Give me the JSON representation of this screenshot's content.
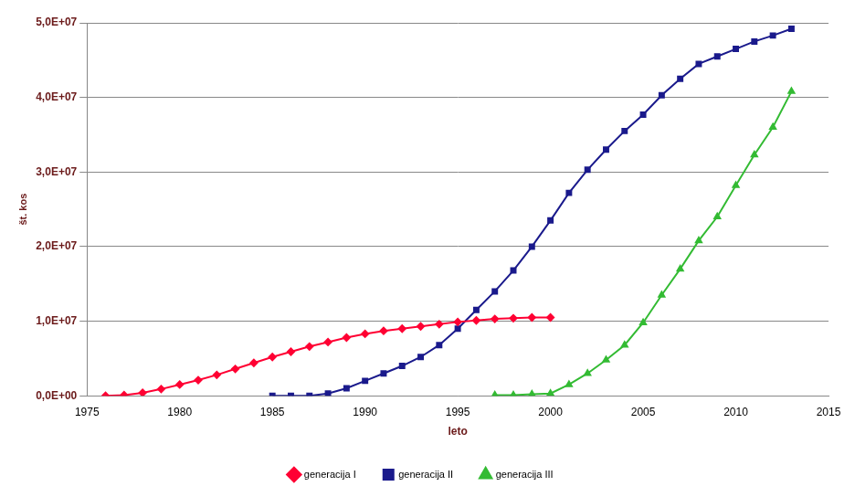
{
  "chart_data": {
    "type": "line",
    "x_label": "leto",
    "y_label": "št. kos",
    "x": [
      1976,
      1977,
      1978,
      1979,
      1980,
      1981,
      1982,
      1983,
      1984,
      1985,
      1986,
      1987,
      1988,
      1989,
      1990,
      1991,
      1992,
      1993,
      1994,
      1995,
      1996,
      1997,
      1998,
      1999,
      2000,
      2001,
      2002,
      2003,
      2004,
      2005,
      2006,
      2007,
      2008,
      2009,
      2010,
      2011,
      2012,
      2013
    ],
    "series": [
      {
        "name": "generacija I",
        "color": "#ff0033",
        "marker": "diamond",
        "values": [
          0,
          100000,
          400000,
          900000,
          1500000,
          2100000,
          2800000,
          3600000,
          4400000,
          5200000,
          5900000,
          6600000,
          7200000,
          7800000,
          8300000,
          8700000,
          9000000,
          9300000,
          9600000,
          9900000,
          10100000,
          10300000,
          10400000,
          10500000,
          10500000,
          null,
          null,
          null,
          null,
          null,
          null,
          null,
          null,
          null,
          null,
          null,
          null,
          null
        ]
      },
      {
        "name": "generacija II",
        "color": "#1a1a8c",
        "marker": "square",
        "values": [
          null,
          null,
          null,
          null,
          null,
          null,
          null,
          null,
          null,
          0,
          0,
          0,
          300000,
          1000000,
          2000000,
          3000000,
          4000000,
          5200000,
          6800000,
          9000000,
          11500000,
          14000000,
          16800000,
          20000000,
          23500000,
          27200000,
          30300000,
          33000000,
          35500000,
          37700000,
          40300000,
          42500000,
          44500000,
          45500000,
          46500000,
          47500000,
          48300000,
          49200000
        ]
      },
      {
        "name": "generacija III",
        "color": "#33bb33",
        "marker": "triangle",
        "values": [
          null,
          null,
          null,
          null,
          null,
          null,
          null,
          null,
          null,
          null,
          null,
          null,
          null,
          null,
          null,
          null,
          null,
          null,
          null,
          null,
          null,
          100000,
          100000,
          200000,
          300000,
          1500000,
          3000000,
          4800000,
          6800000,
          9800000,
          13500000,
          17000000,
          20800000,
          24000000,
          28200000,
          32300000,
          36000000,
          40800000
        ]
      }
    ],
    "xlim": [
      1975,
      2015
    ],
    "xticks": [
      1975,
      1980,
      1985,
      1990,
      1995,
      2000,
      2005,
      2010,
      2015
    ],
    "ylim": [
      0,
      50000000
    ],
    "yticks": [
      {
        "value": 0,
        "label": "0,0E+00"
      },
      {
        "value": 10000000,
        "label": "1,0E+07"
      },
      {
        "value": 20000000,
        "label": "2,0E+07"
      },
      {
        "value": 30000000,
        "label": "3,0E+07"
      },
      {
        "value": 40000000,
        "label": "4,0E+07"
      },
      {
        "value": 50000000,
        "label": "5,0E+07"
      }
    ],
    "grid": "y",
    "legend": "bottom"
  }
}
